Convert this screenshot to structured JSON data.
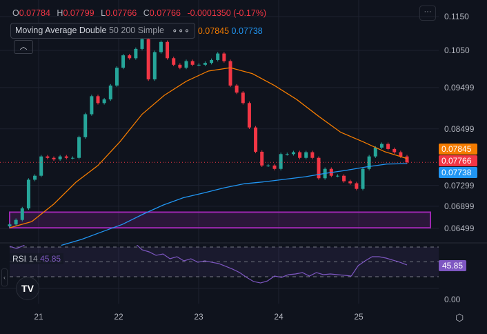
{
  "legend": {
    "o_label": "O",
    "open": "0.07784",
    "h_label": "H",
    "high": "0.07799",
    "l_label": "L",
    "low": "0.07766",
    "c_label": "C",
    "close": "0.07766",
    "change": "-0.0001350 (-0.17%)",
    "indicator_name": "Moving Average Double",
    "indicator_params": "50 200 Simple",
    "ma1_value": "0.07845",
    "ma2_value": "0.07738",
    "more_icon": "more-dots-icon"
  },
  "rsi_legend": {
    "name": "RSI",
    "length": "14",
    "value": "45.85"
  },
  "colors": {
    "up": "#26a69a",
    "down": "#f23645",
    "ma50": "#f57c00",
    "ma200": "#2196f3",
    "rsi": "#7e57c2",
    "zone": "#9c27b0"
  },
  "price_tags": [
    {
      "value": "0.07845",
      "color": "#f57c00"
    },
    {
      "value": "0.07766",
      "color": "#f23645"
    },
    {
      "value": "0.07738",
      "color": "#2196f3"
    }
  ],
  "rsi_tag": "45.85",
  "chart_data": {
    "type": "candlestick",
    "y_scale": "log",
    "y_ticks": [
      "0.1150",
      "0.1050",
      "0.09499",
      "0.08499",
      "0.07299",
      "0.06899",
      "0.06499"
    ],
    "x_ticks": [
      "21",
      "22",
      "23",
      "24",
      "25"
    ],
    "grid": true,
    "close": [
      0.0657,
      0.0665,
      0.0686,
      0.0741,
      0.0749,
      0.0789,
      0.0786,
      0.0783,
      0.0789,
      0.0786,
      0.0786,
      0.0831,
      0.0884,
      0.0928,
      0.0911,
      0.092,
      0.0955,
      0.1002,
      0.1036,
      0.1028,
      0.1054,
      0.1082,
      0.0971,
      0.1045,
      0.1074,
      0.1028,
      0.101,
      0.1002,
      0.102,
      0.101,
      0.101,
      0.1015,
      0.1023,
      0.1041,
      0.102,
      0.0955,
      0.0937,
      0.0911,
      0.0853,
      0.0799,
      0.077,
      0.077,
      0.0763,
      0.0794,
      0.0794,
      0.0798,
      0.0786,
      0.0798,
      0.0786,
      0.0744,
      0.0763,
      0.0749,
      0.0749,
      0.0738,
      0.0734,
      0.0723,
      0.0763,
      0.0789,
      0.0808,
      0.0816,
      0.0805,
      0.0798,
      0.0789,
      0.07766
    ],
    "ma50": [
      0.0651,
      0.0662,
      0.0694,
      0.0736,
      0.077,
      0.0821,
      0.0884,
      0.093,
      0.0966,
      0.0993,
      0.1002,
      0.0986,
      0.0955,
      0.092,
      0.0879,
      0.0842,
      0.0821,
      0.0799,
      0.07845
    ],
    "ma200_start_fraction": 0.13,
    "ma200": [
      0.0621,
      0.0631,
      0.0644,
      0.0657,
      0.0675,
      0.0692,
      0.0706,
      0.0715,
      0.0725,
      0.0733,
      0.0737,
      0.0742,
      0.0747,
      0.0754,
      0.076,
      0.0767,
      0.0773,
      0.07738
    ],
    "zone": {
      "low": 0.0651,
      "high": 0.0679
    },
    "rsi": {
      "levels": [
        70,
        50,
        30
      ],
      "axis_tick": "0.00",
      "values": [
        71,
        68,
        72,
        80,
        78,
        82,
        85,
        80,
        78,
        83,
        86,
        84,
        80,
        78,
        82,
        85,
        84,
        80,
        75,
        66.3,
        63.5,
        58.8,
        60.7,
        54.2,
        57.0,
        51.4,
        54.2,
        49.5,
        51.4,
        49.5,
        47.7,
        44.0,
        40.2,
        35.6,
        29.1,
        23.5,
        21.6,
        24.4,
        30.9,
        29.1,
        32.8,
        33.7,
        35.6,
        30.9,
        35.6,
        32.8,
        33.7,
        32.8,
        31.9,
        30.9,
        44.9,
        51.4,
        57.0,
        57.0,
        55.1,
        52.3,
        49.5,
        45.85
      ]
    }
  }
}
